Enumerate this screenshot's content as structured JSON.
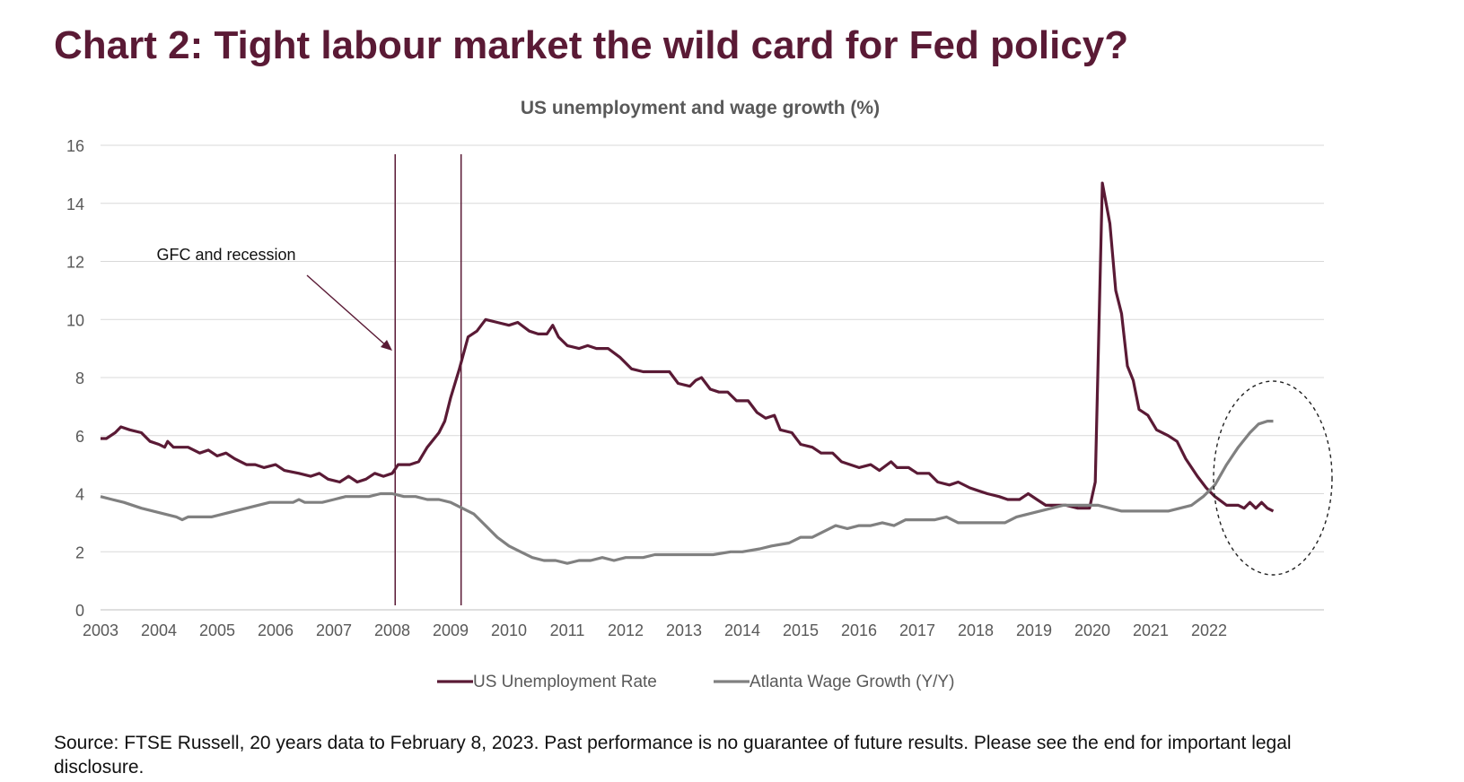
{
  "title": "Chart 2: Tight labour market the wild card for Fed policy?",
  "footer": "Source: FTSE Russell, 20 years data to February 8, 2023. Past performance is no guarantee of future results. Please see the end for important legal disclosure.",
  "colors": {
    "title": "#5a1a35",
    "unemployment": "#5a1a35",
    "wage": "#808080",
    "grid": "#d9d9d9",
    "axis_text": "#595959"
  },
  "chart_data": {
    "type": "line",
    "title": "US unemployment and wage growth (%)",
    "xlabel": "",
    "ylabel": "",
    "xlim": [
      2003,
      2023
    ],
    "ylim": [
      0,
      16
    ],
    "yticks": [
      0,
      2,
      4,
      6,
      8,
      10,
      12,
      14,
      16
    ],
    "xticks": [
      "2003",
      "2004",
      "2005",
      "2006",
      "2007",
      "2008",
      "2009",
      "2010",
      "2011",
      "2012",
      "2013",
      "2014",
      "2015",
      "2016",
      "2017",
      "2018",
      "2019",
      "2020",
      "2021",
      "2022"
    ],
    "grid": true,
    "legend": "bottom-center",
    "series": [
      {
        "name": "US Unemployment Rate",
        "color": "#5a1a35",
        "points": [
          [
            2003.0,
            5.9
          ],
          [
            2003.1,
            5.9
          ],
          [
            2003.25,
            6.1
          ],
          [
            2003.35,
            6.3
          ],
          [
            2003.5,
            6.2
          ],
          [
            2003.7,
            6.1
          ],
          [
            2003.85,
            5.8
          ],
          [
            2004.0,
            5.7
          ],
          [
            2004.1,
            5.6
          ],
          [
            2004.15,
            5.8
          ],
          [
            2004.25,
            5.6
          ],
          [
            2004.5,
            5.6
          ],
          [
            2004.7,
            5.4
          ],
          [
            2004.85,
            5.5
          ],
          [
            2005.0,
            5.3
          ],
          [
            2005.15,
            5.4
          ],
          [
            2005.3,
            5.2
          ],
          [
            2005.5,
            5.0
          ],
          [
            2005.65,
            5.0
          ],
          [
            2005.8,
            4.9
          ],
          [
            2006.0,
            5.0
          ],
          [
            2006.15,
            4.8
          ],
          [
            2006.4,
            4.7
          ],
          [
            2006.6,
            4.6
          ],
          [
            2006.75,
            4.7
          ],
          [
            2006.9,
            4.5
          ],
          [
            2007.1,
            4.4
          ],
          [
            2007.25,
            4.6
          ],
          [
            2007.4,
            4.4
          ],
          [
            2007.55,
            4.5
          ],
          [
            2007.7,
            4.7
          ],
          [
            2007.85,
            4.6
          ],
          [
            2008.0,
            4.7
          ],
          [
            2008.1,
            5.0
          ],
          [
            2008.3,
            5.0
          ],
          [
            2008.45,
            5.1
          ],
          [
            2008.6,
            5.6
          ],
          [
            2008.8,
            6.1
          ],
          [
            2008.9,
            6.5
          ],
          [
            2009.0,
            7.3
          ],
          [
            2009.15,
            8.3
          ],
          [
            2009.3,
            9.4
          ],
          [
            2009.45,
            9.6
          ],
          [
            2009.6,
            10.0
          ],
          [
            2009.8,
            9.9
          ],
          [
            2010.0,
            9.8
          ],
          [
            2010.15,
            9.9
          ],
          [
            2010.35,
            9.6
          ],
          [
            2010.5,
            9.5
          ],
          [
            2010.65,
            9.5
          ],
          [
            2010.75,
            9.8
          ],
          [
            2010.85,
            9.4
          ],
          [
            2011.0,
            9.1
          ],
          [
            2011.2,
            9.0
          ],
          [
            2011.35,
            9.1
          ],
          [
            2011.5,
            9.0
          ],
          [
            2011.7,
            9.0
          ],
          [
            2011.9,
            8.7
          ],
          [
            2012.1,
            8.3
          ],
          [
            2012.3,
            8.2
          ],
          [
            2012.5,
            8.2
          ],
          [
            2012.75,
            8.2
          ],
          [
            2012.9,
            7.8
          ],
          [
            2013.1,
            7.7
          ],
          [
            2013.2,
            7.9
          ],
          [
            2013.3,
            8.0
          ],
          [
            2013.45,
            7.6
          ],
          [
            2013.6,
            7.5
          ],
          [
            2013.75,
            7.5
          ],
          [
            2013.9,
            7.2
          ],
          [
            2014.1,
            7.2
          ],
          [
            2014.25,
            6.8
          ],
          [
            2014.4,
            6.6
          ],
          [
            2014.55,
            6.7
          ],
          [
            2014.65,
            6.2
          ],
          [
            2014.85,
            6.1
          ],
          [
            2015.0,
            5.7
          ],
          [
            2015.2,
            5.6
          ],
          [
            2015.35,
            5.4
          ],
          [
            2015.55,
            5.4
          ],
          [
            2015.7,
            5.1
          ],
          [
            2015.85,
            5.0
          ],
          [
            2016.0,
            4.9
          ],
          [
            2016.2,
            5.0
          ],
          [
            2016.35,
            4.8
          ],
          [
            2016.55,
            5.1
          ],
          [
            2016.65,
            4.9
          ],
          [
            2016.85,
            4.9
          ],
          [
            2017.0,
            4.7
          ],
          [
            2017.2,
            4.7
          ],
          [
            2017.35,
            4.4
          ],
          [
            2017.55,
            4.3
          ],
          [
            2017.7,
            4.4
          ],
          [
            2017.9,
            4.2
          ],
          [
            2018.05,
            4.1
          ],
          [
            2018.2,
            4.0
          ],
          [
            2018.4,
            3.9
          ],
          [
            2018.55,
            3.8
          ],
          [
            2018.75,
            3.8
          ],
          [
            2018.9,
            4.0
          ],
          [
            2019.05,
            3.8
          ],
          [
            2019.2,
            3.6
          ],
          [
            2019.4,
            3.6
          ],
          [
            2019.55,
            3.6
          ],
          [
            2019.75,
            3.5
          ],
          [
            2019.95,
            3.5
          ],
          [
            2020.05,
            4.4
          ],
          [
            2020.17,
            14.7
          ],
          [
            2020.3,
            13.3
          ],
          [
            2020.4,
            11.0
          ],
          [
            2020.5,
            10.2
          ],
          [
            2020.6,
            8.4
          ],
          [
            2020.7,
            7.9
          ],
          [
            2020.8,
            6.9
          ],
          [
            2020.95,
            6.7
          ],
          [
            2021.1,
            6.2
          ],
          [
            2021.3,
            6.0
          ],
          [
            2021.45,
            5.8
          ],
          [
            2021.6,
            5.2
          ],
          [
            2021.8,
            4.6
          ],
          [
            2021.95,
            4.2
          ],
          [
            2022.1,
            3.9
          ],
          [
            2022.3,
            3.6
          ],
          [
            2022.5,
            3.6
          ],
          [
            2022.6,
            3.5
          ],
          [
            2022.7,
            3.7
          ],
          [
            2022.8,
            3.5
          ],
          [
            2022.9,
            3.7
          ],
          [
            2023.0,
            3.5
          ],
          [
            2023.1,
            3.4
          ]
        ]
      },
      {
        "name": "Atlanta Wage Growth (Y/Y)",
        "color": "#808080",
        "points": [
          [
            2003.0,
            3.9
          ],
          [
            2003.2,
            3.8
          ],
          [
            2003.4,
            3.7
          ],
          [
            2003.7,
            3.5
          ],
          [
            2003.9,
            3.4
          ],
          [
            2004.1,
            3.3
          ],
          [
            2004.3,
            3.2
          ],
          [
            2004.4,
            3.1
          ],
          [
            2004.5,
            3.2
          ],
          [
            2004.7,
            3.2
          ],
          [
            2004.9,
            3.2
          ],
          [
            2005.1,
            3.3
          ],
          [
            2005.3,
            3.4
          ],
          [
            2005.5,
            3.5
          ],
          [
            2005.7,
            3.6
          ],
          [
            2005.9,
            3.7
          ],
          [
            2006.1,
            3.7
          ],
          [
            2006.3,
            3.7
          ],
          [
            2006.4,
            3.8
          ],
          [
            2006.5,
            3.7
          ],
          [
            2006.8,
            3.7
          ],
          [
            2007.0,
            3.8
          ],
          [
            2007.2,
            3.9
          ],
          [
            2007.4,
            3.9
          ],
          [
            2007.6,
            3.9
          ],
          [
            2007.8,
            4.0
          ],
          [
            2008.0,
            4.0
          ],
          [
            2008.2,
            3.9
          ],
          [
            2008.4,
            3.9
          ],
          [
            2008.6,
            3.8
          ],
          [
            2008.8,
            3.8
          ],
          [
            2009.0,
            3.7
          ],
          [
            2009.2,
            3.5
          ],
          [
            2009.4,
            3.3
          ],
          [
            2009.6,
            2.9
          ],
          [
            2009.8,
            2.5
          ],
          [
            2010.0,
            2.2
          ],
          [
            2010.2,
            2.0
          ],
          [
            2010.4,
            1.8
          ],
          [
            2010.6,
            1.7
          ],
          [
            2010.8,
            1.7
          ],
          [
            2011.0,
            1.6
          ],
          [
            2011.2,
            1.7
          ],
          [
            2011.4,
            1.7
          ],
          [
            2011.6,
            1.8
          ],
          [
            2011.8,
            1.7
          ],
          [
            2012.0,
            1.8
          ],
          [
            2012.3,
            1.8
          ],
          [
            2012.5,
            1.9
          ],
          [
            2012.8,
            1.9
          ],
          [
            2013.0,
            1.9
          ],
          [
            2013.5,
            1.9
          ],
          [
            2013.8,
            2.0
          ],
          [
            2014.0,
            2.0
          ],
          [
            2014.3,
            2.1
          ],
          [
            2014.5,
            2.2
          ],
          [
            2014.8,
            2.3
          ],
          [
            2015.0,
            2.5
          ],
          [
            2015.2,
            2.5
          ],
          [
            2015.4,
            2.7
          ],
          [
            2015.6,
            2.9
          ],
          [
            2015.8,
            2.8
          ],
          [
            2016.0,
            2.9
          ],
          [
            2016.2,
            2.9
          ],
          [
            2016.4,
            3.0
          ],
          [
            2016.6,
            2.9
          ],
          [
            2016.8,
            3.1
          ],
          [
            2017.0,
            3.1
          ],
          [
            2017.3,
            3.1
          ],
          [
            2017.5,
            3.2
          ],
          [
            2017.7,
            3.0
          ],
          [
            2017.9,
            3.0
          ],
          [
            2018.1,
            3.0
          ],
          [
            2018.3,
            3.0
          ],
          [
            2018.5,
            3.0
          ],
          [
            2018.7,
            3.2
          ],
          [
            2018.9,
            3.3
          ],
          [
            2019.1,
            3.4
          ],
          [
            2019.3,
            3.5
          ],
          [
            2019.5,
            3.6
          ],
          [
            2019.7,
            3.6
          ],
          [
            2019.9,
            3.6
          ],
          [
            2020.1,
            3.6
          ],
          [
            2020.3,
            3.5
          ],
          [
            2020.5,
            3.4
          ],
          [
            2020.8,
            3.4
          ],
          [
            2021.0,
            3.4
          ],
          [
            2021.3,
            3.4
          ],
          [
            2021.5,
            3.5
          ],
          [
            2021.7,
            3.6
          ],
          [
            2021.9,
            3.9
          ],
          [
            2022.1,
            4.3
          ],
          [
            2022.3,
            5.0
          ],
          [
            2022.5,
            5.6
          ],
          [
            2022.7,
            6.1
          ],
          [
            2022.85,
            6.4
          ],
          [
            2023.0,
            6.5
          ],
          [
            2023.1,
            6.5
          ]
        ]
      }
    ],
    "annotations": [
      {
        "text": "GFC and recession"
      }
    ],
    "shaded_markers": [
      2008.05,
      2009.18
    ]
  }
}
